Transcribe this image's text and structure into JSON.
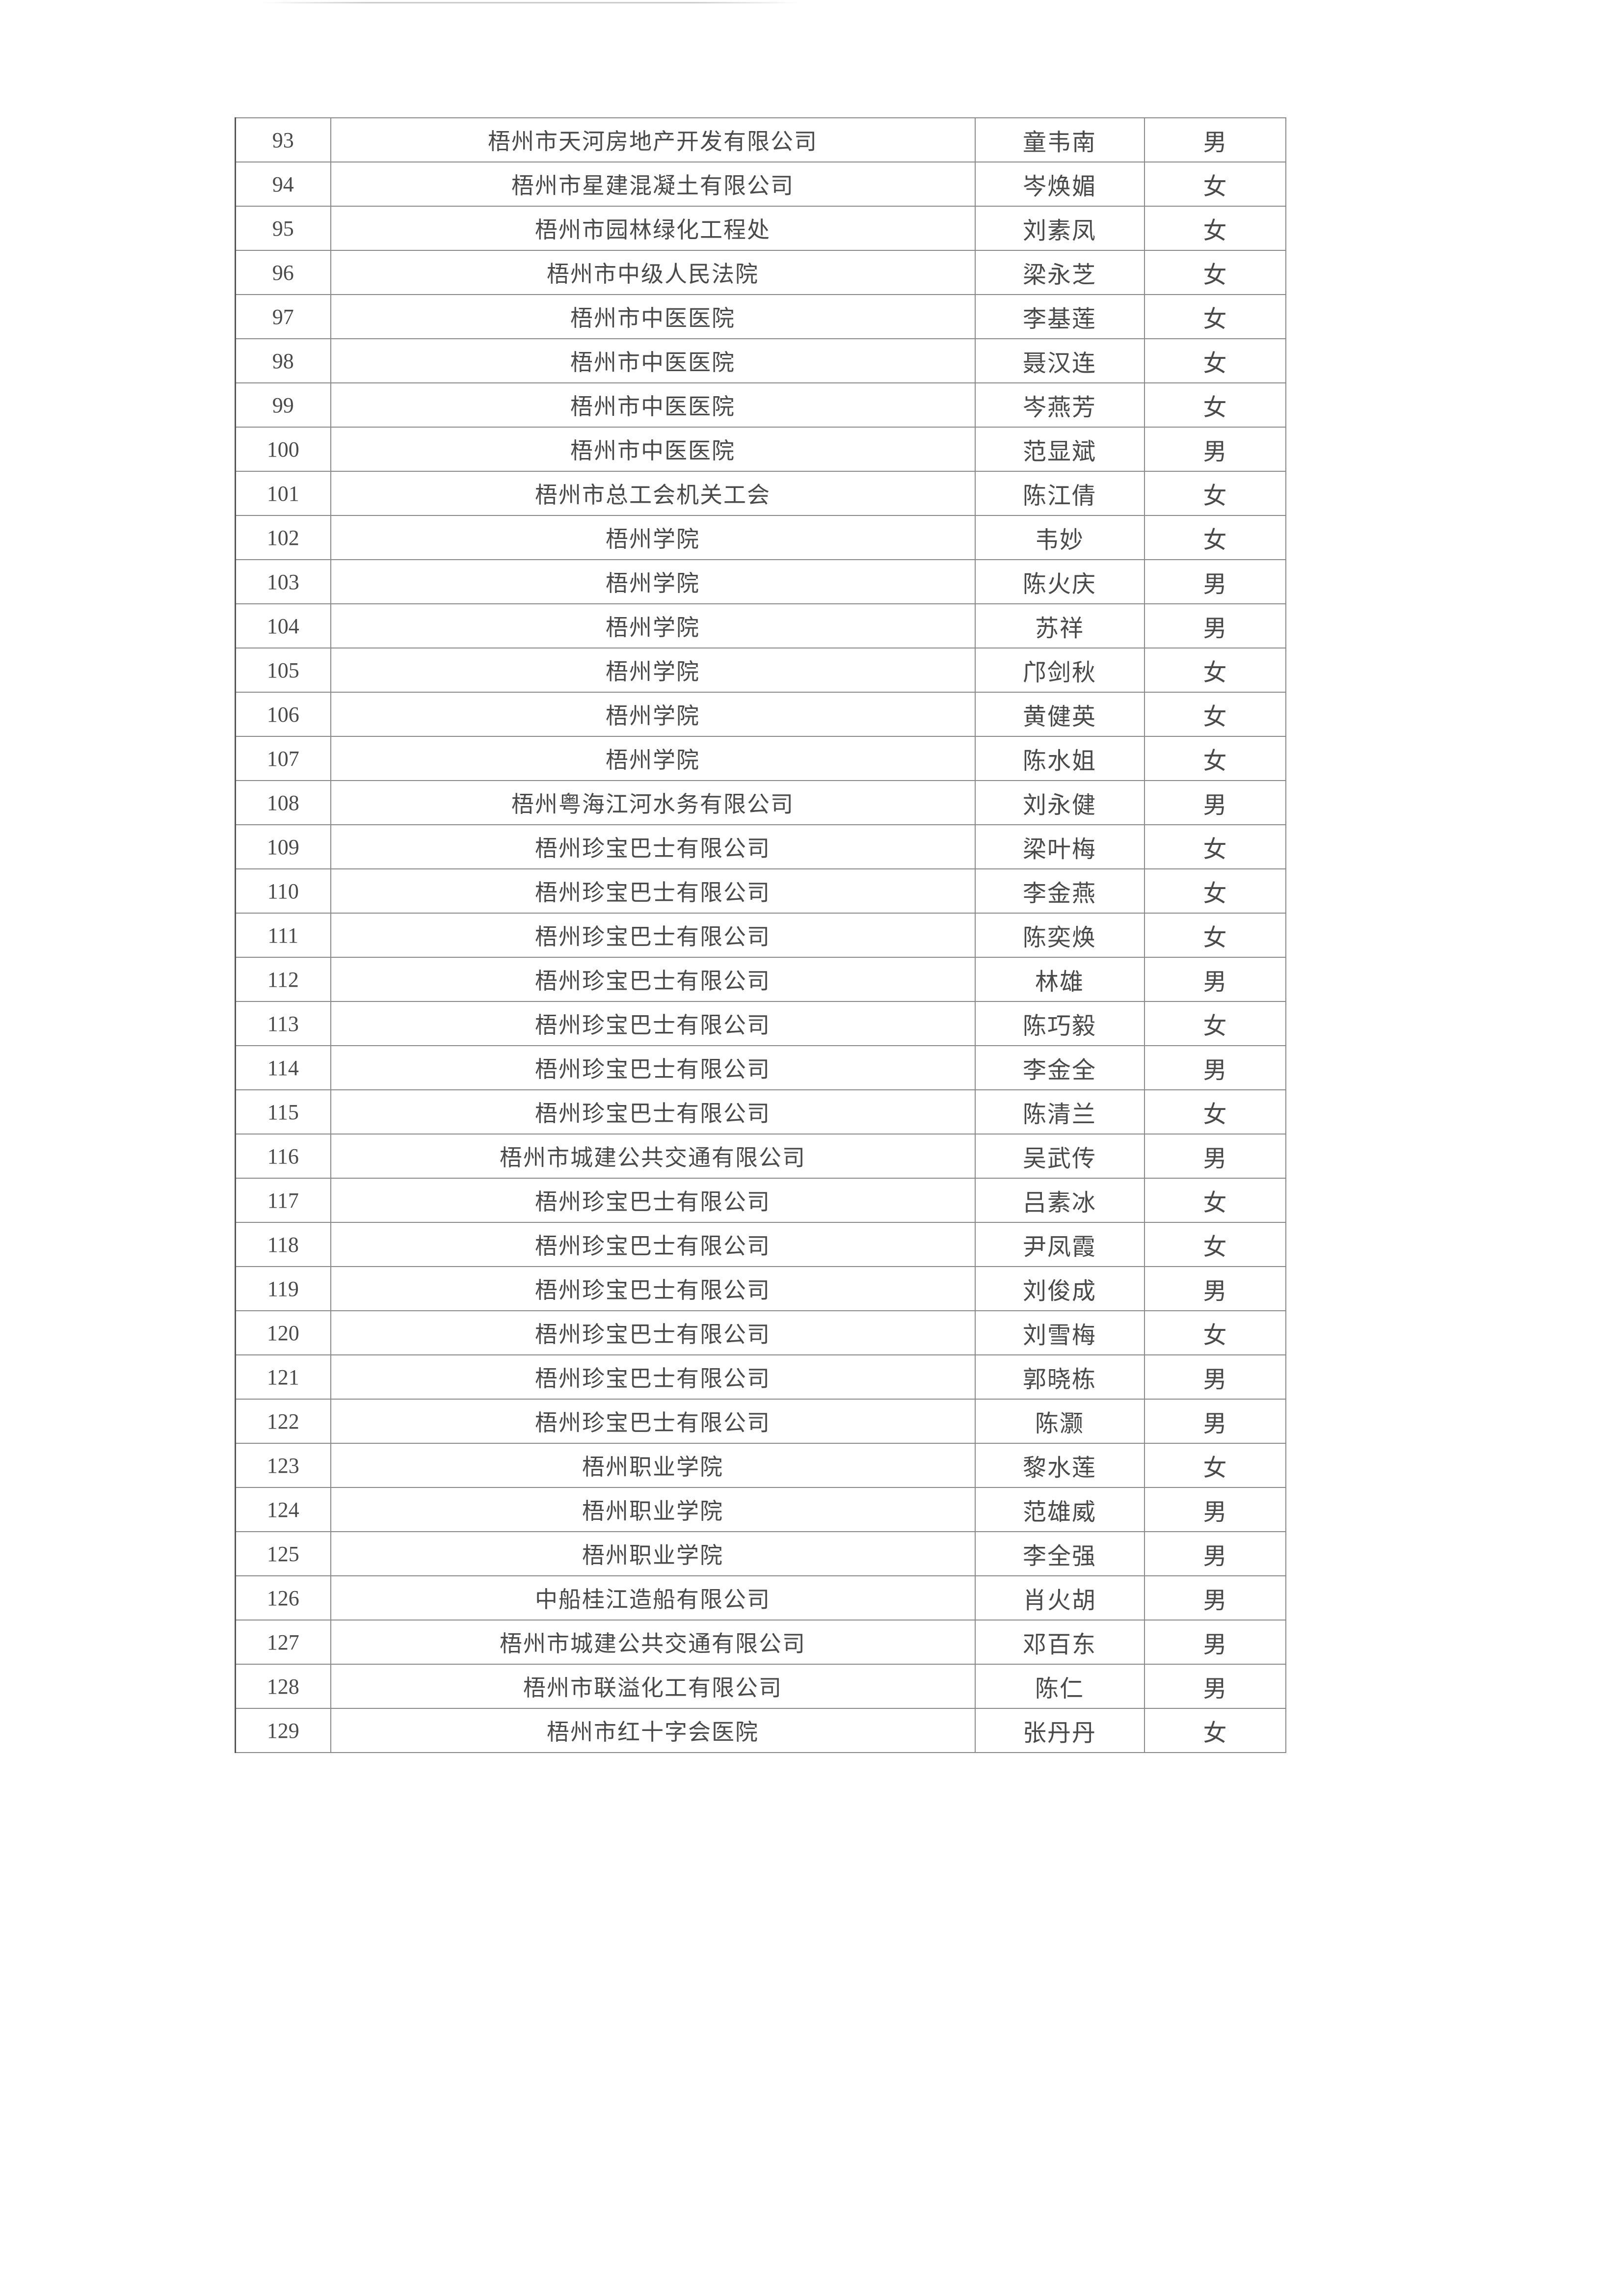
{
  "rows": [
    {
      "no": "93",
      "unit": "梧州市天河房地产开发有限公司",
      "name": "童韦南",
      "gender": "男"
    },
    {
      "no": "94",
      "unit": "梧州市星建混凝土有限公司",
      "name": "岑焕媚",
      "gender": "女"
    },
    {
      "no": "95",
      "unit": "梧州市园林绿化工程处",
      "name": "刘素凤",
      "gender": "女"
    },
    {
      "no": "96",
      "unit": "梧州市中级人民法院",
      "name": "梁永芝",
      "gender": "女"
    },
    {
      "no": "97",
      "unit": "梧州市中医医院",
      "name": "李基莲",
      "gender": "女"
    },
    {
      "no": "98",
      "unit": "梧州市中医医院",
      "name": "聂汉连",
      "gender": "女"
    },
    {
      "no": "99",
      "unit": "梧州市中医医院",
      "name": "岑燕芳",
      "gender": "女"
    },
    {
      "no": "100",
      "unit": "梧州市中医医院",
      "name": "范显斌",
      "gender": "男"
    },
    {
      "no": "101",
      "unit": "梧州市总工会机关工会",
      "name": "陈江倩",
      "gender": "女"
    },
    {
      "no": "102",
      "unit": "梧州学院",
      "name": "韦妙",
      "gender": "女"
    },
    {
      "no": "103",
      "unit": "梧州学院",
      "name": "陈火庆",
      "gender": "男"
    },
    {
      "no": "104",
      "unit": "梧州学院",
      "name": "苏祥",
      "gender": "男"
    },
    {
      "no": "105",
      "unit": "梧州学院",
      "name": "邝剑秋",
      "gender": "女"
    },
    {
      "no": "106",
      "unit": "梧州学院",
      "name": "黄健英",
      "gender": "女"
    },
    {
      "no": "107",
      "unit": "梧州学院",
      "name": "陈水姐",
      "gender": "女"
    },
    {
      "no": "108",
      "unit": "梧州粤海江河水务有限公司",
      "name": "刘永健",
      "gender": "男"
    },
    {
      "no": "109",
      "unit": "梧州珍宝巴士有限公司",
      "name": "梁叶梅",
      "gender": "女"
    },
    {
      "no": "110",
      "unit": "梧州珍宝巴士有限公司",
      "name": "李金燕",
      "gender": "女"
    },
    {
      "no": "111",
      "unit": "梧州珍宝巴士有限公司",
      "name": "陈奕焕",
      "gender": "女"
    },
    {
      "no": "112",
      "unit": "梧州珍宝巴士有限公司",
      "name": "林雄",
      "gender": "男"
    },
    {
      "no": "113",
      "unit": "梧州珍宝巴士有限公司",
      "name": "陈巧毅",
      "gender": "女"
    },
    {
      "no": "114",
      "unit": "梧州珍宝巴士有限公司",
      "name": "李金全",
      "gender": "男"
    },
    {
      "no": "115",
      "unit": "梧州珍宝巴士有限公司",
      "name": "陈清兰",
      "gender": "女"
    },
    {
      "no": "116",
      "unit": "梧州市城建公共交通有限公司",
      "name": "吴武传",
      "gender": "男"
    },
    {
      "no": "117",
      "unit": "梧州珍宝巴士有限公司",
      "name": "吕素冰",
      "gender": "女"
    },
    {
      "no": "118",
      "unit": "梧州珍宝巴士有限公司",
      "name": "尹凤霞",
      "gender": "女"
    },
    {
      "no": "119",
      "unit": "梧州珍宝巴士有限公司",
      "name": "刘俊成",
      "gender": "男"
    },
    {
      "no": "120",
      "unit": "梧州珍宝巴士有限公司",
      "name": "刘雪梅",
      "gender": "女"
    },
    {
      "no": "121",
      "unit": "梧州珍宝巴士有限公司",
      "name": "郭晓栋",
      "gender": "男"
    },
    {
      "no": "122",
      "unit": "梧州珍宝巴士有限公司",
      "name": "陈灏",
      "gender": "男"
    },
    {
      "no": "123",
      "unit": "梧州职业学院",
      "name": "黎水莲",
      "gender": "女"
    },
    {
      "no": "124",
      "unit": "梧州职业学院",
      "name": "范雄威",
      "gender": "男"
    },
    {
      "no": "125",
      "unit": "梧州职业学院",
      "name": "李全强",
      "gender": "男"
    },
    {
      "no": "126",
      "unit": "中船桂江造船有限公司",
      "name": "肖火胡",
      "gender": "男"
    },
    {
      "no": "127",
      "unit": "梧州市城建公共交通有限公司",
      "name": "邓百东",
      "gender": "男"
    },
    {
      "no": "128",
      "unit": "梧州市联溢化工有限公司",
      "name": "陈仁",
      "gender": "男"
    },
    {
      "no": "129",
      "unit": "梧州市红十字会医院",
      "name": "张丹丹",
      "gender": "女"
    }
  ]
}
